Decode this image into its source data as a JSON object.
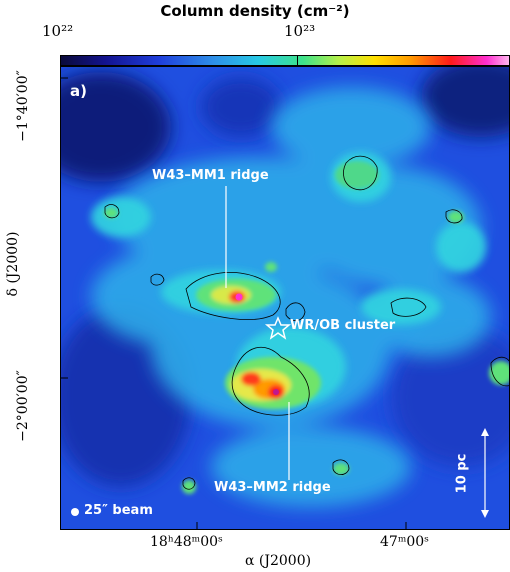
{
  "colorbar": {
    "title": "Column density (cm⁻²)",
    "tick_left": "10²²",
    "tick_mid": "10²³"
  },
  "panel_label": "a)",
  "annotations": {
    "mm1": "W43–MM1 ridge",
    "mm2": "W43–MM2 ridge",
    "cluster": "WR/OB cluster",
    "scale": "10 pc",
    "beam": "25″ beam"
  },
  "axes": {
    "x_label": "α (J2000)",
    "y_label": "δ (J2000)",
    "x_ticks": [
      "18ʰ48ᵐ00ˢ",
      "47ᵐ00ˢ"
    ],
    "y_ticks": [
      "−1°40′00″",
      "−2°00′00″"
    ]
  },
  "colors": {
    "background_low": "#1f3fdc",
    "ridge_high": "#ff1a1a",
    "peak": "#ff2fd0",
    "contour": "#000000",
    "annotation": "#ffffff"
  }
}
